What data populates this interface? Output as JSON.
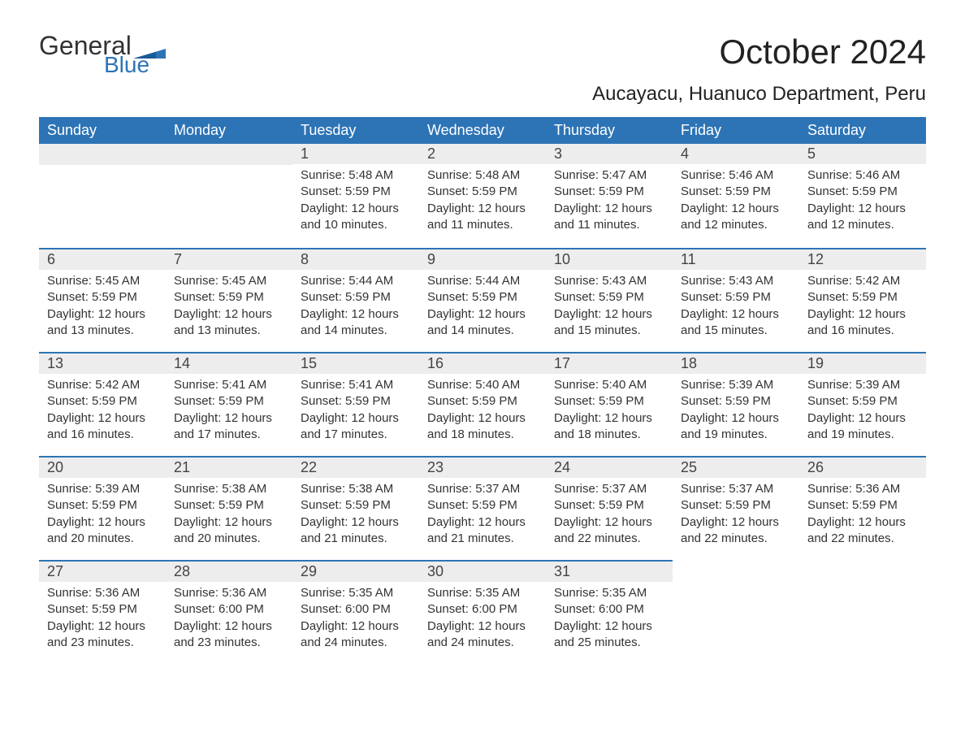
{
  "logo": {
    "word1": "General",
    "word2": "Blue"
  },
  "title": "October 2024",
  "location": "Aucayacu, Huanuco Department, Peru",
  "colors": {
    "header_bg": "#2d74b6",
    "header_text": "#ffffff",
    "daybar_bg": "#ededed",
    "daybar_border": "#2d74b6",
    "text": "#333333",
    "page_bg": "#ffffff"
  },
  "day_headers": [
    "Sunday",
    "Monday",
    "Tuesday",
    "Wednesday",
    "Thursday",
    "Friday",
    "Saturday"
  ],
  "weeks": [
    [
      null,
      null,
      {
        "n": "1",
        "sunrise": "5:48 AM",
        "sunset": "5:59 PM",
        "daylight": "12 hours and 10 minutes."
      },
      {
        "n": "2",
        "sunrise": "5:48 AM",
        "sunset": "5:59 PM",
        "daylight": "12 hours and 11 minutes."
      },
      {
        "n": "3",
        "sunrise": "5:47 AM",
        "sunset": "5:59 PM",
        "daylight": "12 hours and 11 minutes."
      },
      {
        "n": "4",
        "sunrise": "5:46 AM",
        "sunset": "5:59 PM",
        "daylight": "12 hours and 12 minutes."
      },
      {
        "n": "5",
        "sunrise": "5:46 AM",
        "sunset": "5:59 PM",
        "daylight": "12 hours and 12 minutes."
      }
    ],
    [
      {
        "n": "6",
        "sunrise": "5:45 AM",
        "sunset": "5:59 PM",
        "daylight": "12 hours and 13 minutes."
      },
      {
        "n": "7",
        "sunrise": "5:45 AM",
        "sunset": "5:59 PM",
        "daylight": "12 hours and 13 minutes."
      },
      {
        "n": "8",
        "sunrise": "5:44 AM",
        "sunset": "5:59 PM",
        "daylight": "12 hours and 14 minutes."
      },
      {
        "n": "9",
        "sunrise": "5:44 AM",
        "sunset": "5:59 PM",
        "daylight": "12 hours and 14 minutes."
      },
      {
        "n": "10",
        "sunrise": "5:43 AM",
        "sunset": "5:59 PM",
        "daylight": "12 hours and 15 minutes."
      },
      {
        "n": "11",
        "sunrise": "5:43 AM",
        "sunset": "5:59 PM",
        "daylight": "12 hours and 15 minutes."
      },
      {
        "n": "12",
        "sunrise": "5:42 AM",
        "sunset": "5:59 PM",
        "daylight": "12 hours and 16 minutes."
      }
    ],
    [
      {
        "n": "13",
        "sunrise": "5:42 AM",
        "sunset": "5:59 PM",
        "daylight": "12 hours and 16 minutes."
      },
      {
        "n": "14",
        "sunrise": "5:41 AM",
        "sunset": "5:59 PM",
        "daylight": "12 hours and 17 minutes."
      },
      {
        "n": "15",
        "sunrise": "5:41 AM",
        "sunset": "5:59 PM",
        "daylight": "12 hours and 17 minutes."
      },
      {
        "n": "16",
        "sunrise": "5:40 AM",
        "sunset": "5:59 PM",
        "daylight": "12 hours and 18 minutes."
      },
      {
        "n": "17",
        "sunrise": "5:40 AM",
        "sunset": "5:59 PM",
        "daylight": "12 hours and 18 minutes."
      },
      {
        "n": "18",
        "sunrise": "5:39 AM",
        "sunset": "5:59 PM",
        "daylight": "12 hours and 19 minutes."
      },
      {
        "n": "19",
        "sunrise": "5:39 AM",
        "sunset": "5:59 PM",
        "daylight": "12 hours and 19 minutes."
      }
    ],
    [
      {
        "n": "20",
        "sunrise": "5:39 AM",
        "sunset": "5:59 PM",
        "daylight": "12 hours and 20 minutes."
      },
      {
        "n": "21",
        "sunrise": "5:38 AM",
        "sunset": "5:59 PM",
        "daylight": "12 hours and 20 minutes."
      },
      {
        "n": "22",
        "sunrise": "5:38 AM",
        "sunset": "5:59 PM",
        "daylight": "12 hours and 21 minutes."
      },
      {
        "n": "23",
        "sunrise": "5:37 AM",
        "sunset": "5:59 PM",
        "daylight": "12 hours and 21 minutes."
      },
      {
        "n": "24",
        "sunrise": "5:37 AM",
        "sunset": "5:59 PM",
        "daylight": "12 hours and 22 minutes."
      },
      {
        "n": "25",
        "sunrise": "5:37 AM",
        "sunset": "5:59 PM",
        "daylight": "12 hours and 22 minutes."
      },
      {
        "n": "26",
        "sunrise": "5:36 AM",
        "sunset": "5:59 PM",
        "daylight": "12 hours and 22 minutes."
      }
    ],
    [
      {
        "n": "27",
        "sunrise": "5:36 AM",
        "sunset": "5:59 PM",
        "daylight": "12 hours and 23 minutes."
      },
      {
        "n": "28",
        "sunrise": "5:36 AM",
        "sunset": "6:00 PM",
        "daylight": "12 hours and 23 minutes."
      },
      {
        "n": "29",
        "sunrise": "5:35 AM",
        "sunset": "6:00 PM",
        "daylight": "12 hours and 24 minutes."
      },
      {
        "n": "30",
        "sunrise": "5:35 AM",
        "sunset": "6:00 PM",
        "daylight": "12 hours and 24 minutes."
      },
      {
        "n": "31",
        "sunrise": "5:35 AM",
        "sunset": "6:00 PM",
        "daylight": "12 hours and 25 minutes."
      },
      null,
      null
    ]
  ],
  "labels": {
    "sunrise": "Sunrise:",
    "sunset": "Sunset:",
    "daylight": "Daylight:"
  }
}
